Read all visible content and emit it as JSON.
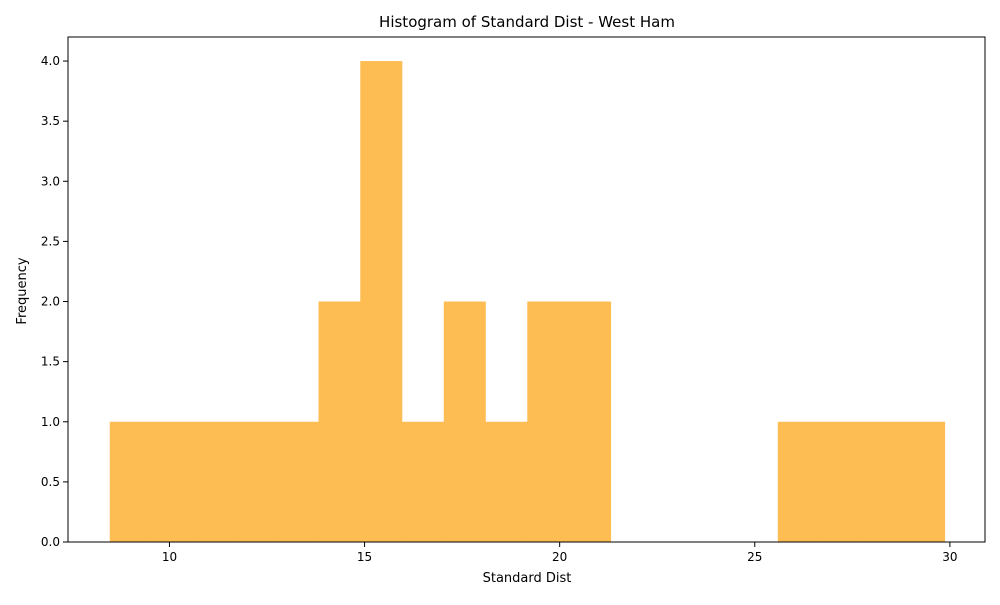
{
  "chart_data": {
    "type": "bar",
    "title": "Histogram of Standard Dist - West Ham",
    "xlabel": "Standard Dist",
    "ylabel": "Frequency",
    "bar_color": "#fdb94a",
    "bar_opacity": 0.95,
    "xlim": [
      7.4,
      30.9
    ],
    "ylim": [
      0,
      4.2
    ],
    "x_ticks": [
      10,
      15,
      20,
      25,
      30
    ],
    "y_ticks": [
      0.0,
      0.5,
      1.0,
      1.5,
      2.0,
      2.5,
      3.0,
      3.5,
      4.0
    ],
    "x_tick_labels": [
      "10",
      "15",
      "20",
      "25",
      "30"
    ],
    "y_tick_labels": [
      "0.0",
      "0.5",
      "1.0",
      "1.5",
      "2.0",
      "2.5",
      "3.0",
      "3.5",
      "4.0"
    ],
    "bins": [
      {
        "x0": 8.47,
        "x1": 9.54,
        "count": 1
      },
      {
        "x0": 9.54,
        "x1": 10.61,
        "count": 1
      },
      {
        "x0": 10.61,
        "x1": 11.68,
        "count": 1
      },
      {
        "x0": 11.68,
        "x1": 12.75,
        "count": 1
      },
      {
        "x0": 12.75,
        "x1": 13.82,
        "count": 1
      },
      {
        "x0": 13.82,
        "x1": 14.89,
        "count": 2
      },
      {
        "x0": 14.89,
        "x1": 15.96,
        "count": 4
      },
      {
        "x0": 15.96,
        "x1": 17.03,
        "count": 1
      },
      {
        "x0": 17.03,
        "x1": 18.1,
        "count": 2
      },
      {
        "x0": 18.1,
        "x1": 19.17,
        "count": 1
      },
      {
        "x0": 19.17,
        "x1": 20.24,
        "count": 2
      },
      {
        "x0": 20.24,
        "x1": 21.31,
        "count": 2
      },
      {
        "x0": 21.31,
        "x1": 22.38,
        "count": 0
      },
      {
        "x0": 22.38,
        "x1": 23.45,
        "count": 0
      },
      {
        "x0": 23.45,
        "x1": 24.52,
        "count": 0
      },
      {
        "x0": 24.52,
        "x1": 25.59,
        "count": 0
      },
      {
        "x0": 25.59,
        "x1": 26.66,
        "count": 1
      },
      {
        "x0": 26.66,
        "x1": 27.73,
        "count": 1
      },
      {
        "x0": 27.73,
        "x1": 28.8,
        "count": 1
      },
      {
        "x0": 28.8,
        "x1": 29.87,
        "count": 1
      }
    ],
    "grid": false,
    "legend": "none"
  }
}
